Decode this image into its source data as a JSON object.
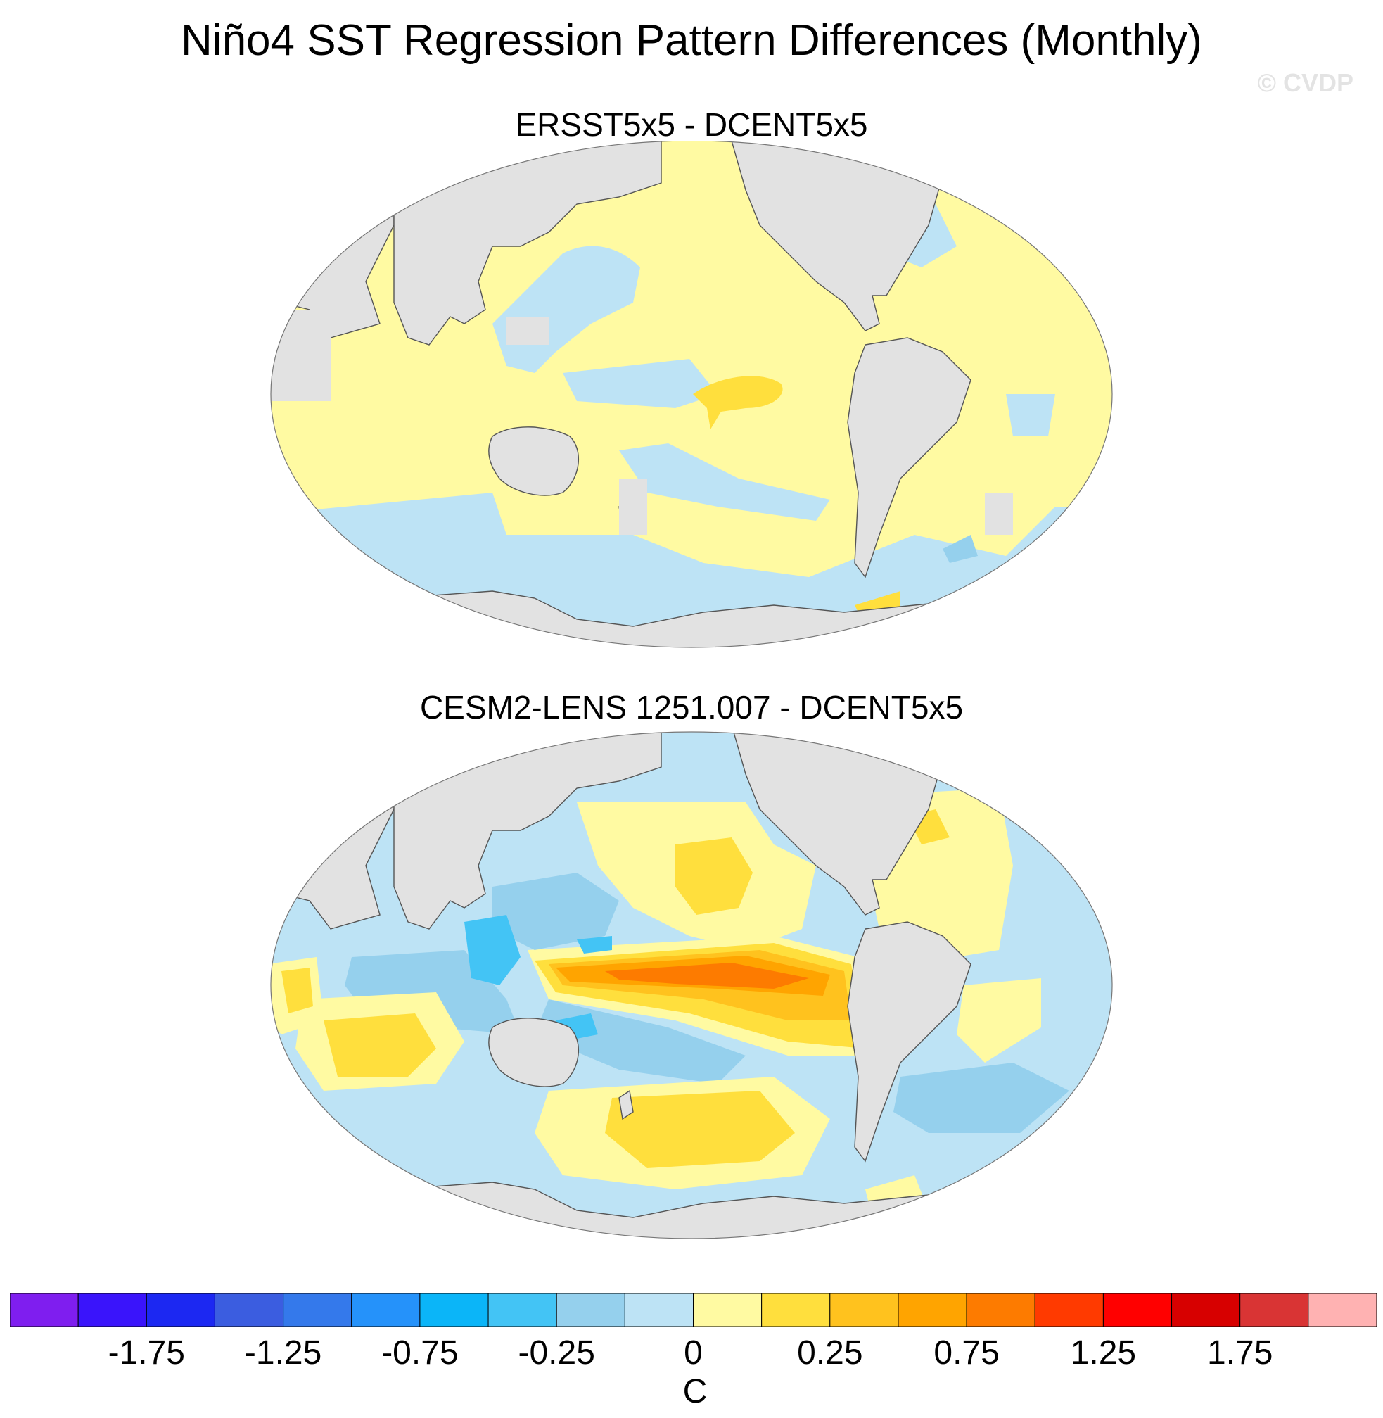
{
  "figure": {
    "title": "Niño4 SST Regression Pattern Differences (Monthly)",
    "watermark": "© CVDP"
  },
  "panels": [
    {
      "id": "top",
      "title": "ERSST5x5 - DCENT5x5"
    },
    {
      "id": "bottom",
      "title": "CESM2-LENS 1251.007 - DCENT5x5"
    }
  ],
  "colorbar": {
    "units": "C",
    "colors": [
      "#7f1eef",
      "#3a14fb",
      "#1c28f2",
      "#3b5de0",
      "#3479eb",
      "#2592fa",
      "#0bb5f8",
      "#43c4f5",
      "#95d0ed",
      "#bde3f5",
      "#fffaa2",
      "#ffdf3d",
      "#ffc21e",
      "#ffa400",
      "#fd7b00",
      "#ff3a00",
      "#ff0000",
      "#d70000",
      "#d93434",
      "#ffb2b2"
    ],
    "levels": [
      "-1.75",
      "-1.25",
      "-0.75",
      "-0.25",
      "0",
      "0.25",
      "0.75",
      "1.25",
      "1.75"
    ],
    "land_color": "#e2e2e2",
    "coast_color": "#555555"
  },
  "chart_data": [
    {
      "type": "heatmap",
      "title": "ERSST5x5 - DCENT5x5",
      "variable": "SST regression difference",
      "units": "C",
      "colorbar_range": [
        -2.0,
        2.0
      ],
      "features": [
        {
          "region": "Central tropical Pacific",
          "value": 0.25
        },
        {
          "region": "North Pacific",
          "value": 0.1
        },
        {
          "region": "Kuroshio extension",
          "value": -0.1
        },
        {
          "region": "North Atlantic",
          "value": 0.1
        },
        {
          "region": "Indian Ocean",
          "value": 0.1
        },
        {
          "region": "Southern Ocean",
          "value": -0.1
        },
        {
          "region": "South Atlantic (east)",
          "value": -0.25
        }
      ]
    },
    {
      "type": "heatmap",
      "title": "CESM2-LENS 1251.007 - DCENT5x5",
      "variable": "SST regression difference",
      "units": "C",
      "colorbar_range": [
        -2.0,
        2.0
      ],
      "features": [
        {
          "region": "Equatorial central/eastern Pacific",
          "value": 1.0
        },
        {
          "region": "Eastern tropical Pacific",
          "value": 0.5
        },
        {
          "region": "Western Pacific warm pool",
          "value": -0.5
        },
        {
          "region": "Philippine Sea",
          "value": -0.75
        },
        {
          "region": "Subtropical North Pacific",
          "value": 0.25
        },
        {
          "region": "South Pacific",
          "value": 0.25
        },
        {
          "region": "Indian Ocean (tropical)",
          "value": -0.25
        },
        {
          "region": "South Indian Ocean",
          "value": 0.25
        },
        {
          "region": "South Atlantic",
          "value": -0.25
        },
        {
          "region": "North Atlantic",
          "value": 0.1
        }
      ]
    }
  ]
}
